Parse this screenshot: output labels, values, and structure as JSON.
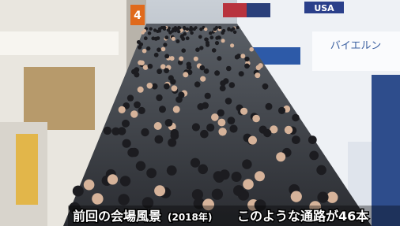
{
  "signs": {
    "aisle": "4",
    "country": "USA",
    "booth": "バイエルン"
  },
  "caption": {
    "main": "前回の会場風景",
    "year": "(2018年)",
    "note": "このような通路が46本"
  }
}
